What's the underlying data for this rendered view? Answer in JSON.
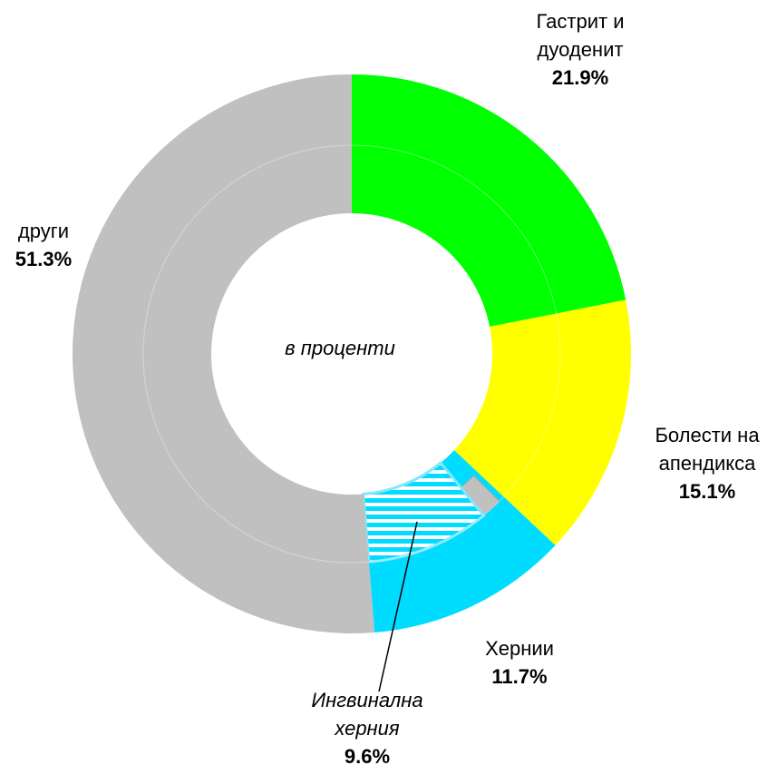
{
  "chart_data": {
    "type": "pie",
    "annotation": "в проценти",
    "categories": [
      "Гастрит и дуоденит",
      "Болести на апендикса",
      "Хернии",
      "други"
    ],
    "values": [
      21.9,
      15.1,
      11.7,
      51.3
    ],
    "value_labels": [
      "21.9%",
      "15.1%",
      "11.7%",
      "51.3%"
    ],
    "colors": [
      "#00ff00",
      "#ffff00",
      "#00dcff",
      "#c0c0c0"
    ],
    "inner": {
      "parent": "Хернии",
      "category": "Ингвинална херния",
      "value": 9.6,
      "value_label": "9.6%",
      "color": "#00dcff",
      "hatch": true
    }
  }
}
